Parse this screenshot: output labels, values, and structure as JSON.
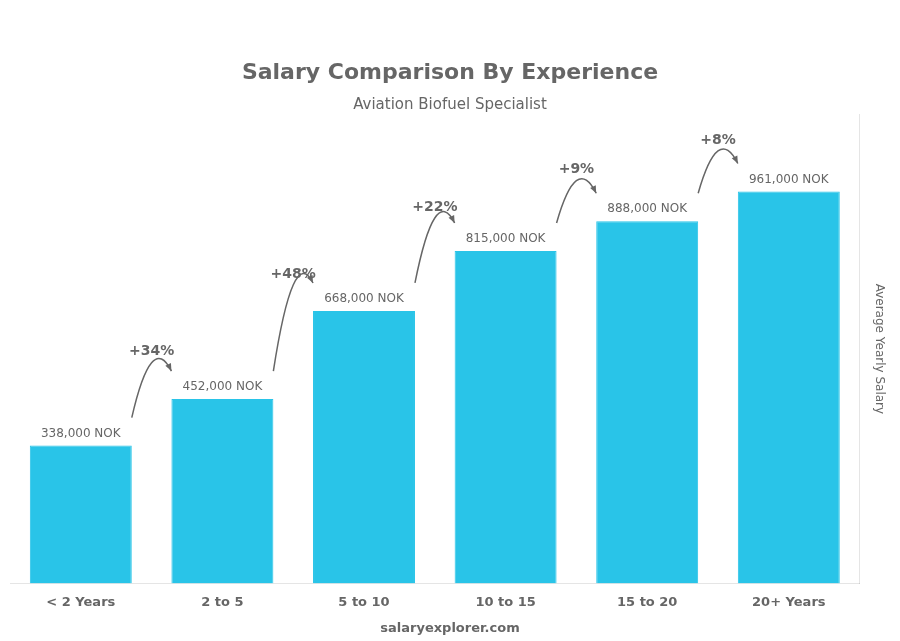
{
  "chart_data": {
    "type": "bar",
    "title": "Salary Comparison By Experience",
    "subtitle": "Aviation Biofuel Specialist",
    "ylabel": "Average Yearly Salary",
    "footer": "salaryexplorer.com",
    "categories": [
      "< 2 Years",
      "2 to 5",
      "5 to 10",
      "10 to 15",
      "15 to 20",
      "20+ Years"
    ],
    "values": [
      338000,
      452000,
      668000,
      815000,
      888000,
      961000
    ],
    "value_labels": [
      "338,000 NOK",
      "452,000 NOK",
      "668,000 NOK",
      "815,000 NOK",
      "888,000 NOK",
      "961,000 NOK"
    ],
    "annotations": [
      "+34%",
      "+48%",
      "+22%",
      "+9%",
      "+8%"
    ],
    "color": "#29c4e8",
    "ylim": [
      0,
      1150000
    ],
    "grid": false,
    "legend": false,
    "data_labels": true,
    "tick_labels": "x"
  }
}
